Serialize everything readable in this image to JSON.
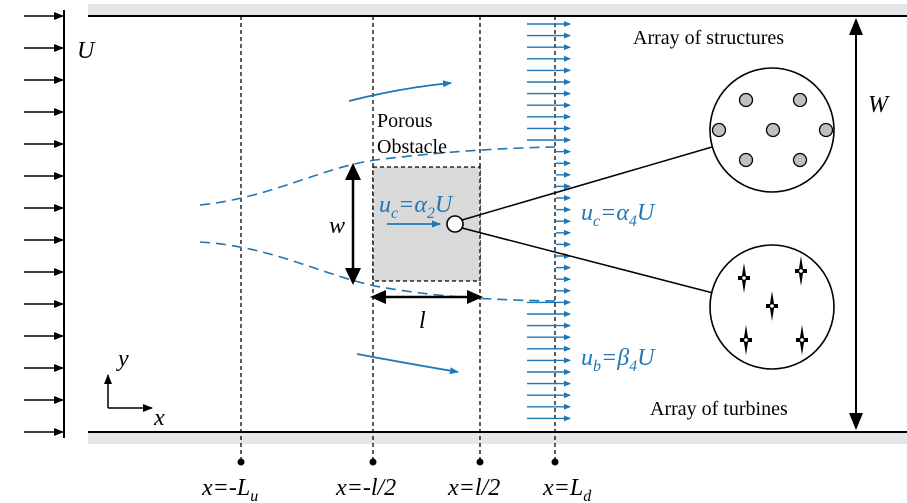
{
  "colors": {
    "black": "#000000",
    "blue": "#1f77b4",
    "wall_shade": "#e6e6e6",
    "obstacle_fill": "#d9d9d9",
    "structure_fill": "#bfbfbf"
  },
  "labels": {
    "inflow": "U",
    "channel_width": "W",
    "obstacle_width": "w",
    "obstacle_length": "l",
    "porous_line1": "Porous",
    "porous_line2": "Obstacle",
    "structures": "Array of structures",
    "turbines": "Array of turbines",
    "axis_y": "y",
    "axis_x": "x"
  },
  "velocities": {
    "core_in": {
      "var": "u",
      "sub": "c",
      "eq": "=",
      "coef": "α",
      "csub": "2",
      "tail": "U"
    },
    "core_out": {
      "var": "u",
      "sub": "c",
      "eq": "=",
      "coef": "α",
      "csub": "4",
      "tail": "U"
    },
    "bypass_out": {
      "var": "u",
      "sub": "b",
      "eq": "=",
      "coef": "β",
      "csub": "4",
      "tail": "U"
    }
  },
  "stations": [
    {
      "pre": "x=-",
      "main": "L",
      "sub": "u"
    },
    {
      "pre": "x=-",
      "main": "l/2",
      "sub": ""
    },
    {
      "pre": "x=",
      "main": "l/2",
      "sub": ""
    },
    {
      "pre": "x=",
      "main": "L",
      "sub": "d"
    }
  ]
}
